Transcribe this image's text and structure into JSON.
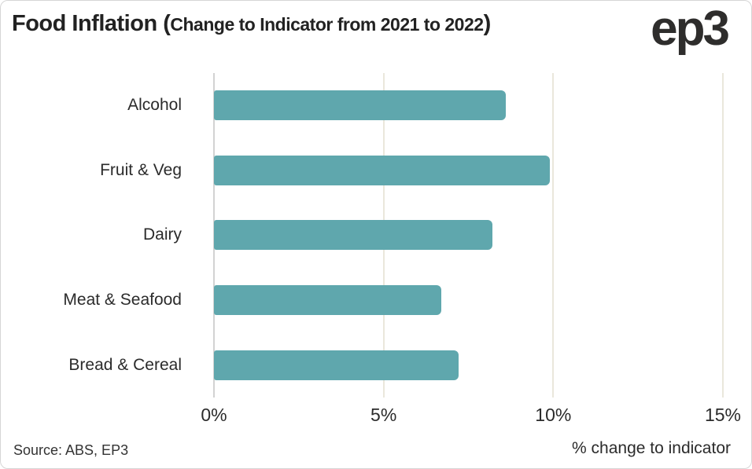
{
  "title": {
    "main": "Food Inflation (",
    "subtitle": "Change to Indicator from 2021 to 2022",
    "close_paren": ")"
  },
  "logo_text": "ep3",
  "chart_data": {
    "type": "bar",
    "orientation": "horizontal",
    "title": "Food Inflation (Change to Indicator from 2021 to 2022)",
    "categories": [
      "Alcohol",
      "Fruit & Veg",
      "Dairy",
      "Meat & Seafood",
      "Bread & Cereal"
    ],
    "values": [
      8.6,
      9.9,
      8.2,
      6.7,
      7.2
    ],
    "xlim": [
      0,
      15
    ],
    "x_tick_values": [
      0,
      5,
      10,
      15
    ],
    "x_ticks": [
      "0%",
      "5%",
      "10%",
      "15%"
    ],
    "xlabel": "% change to indicator",
    "grid": true,
    "legend": false,
    "bar_color": "#5fa7ad",
    "axis_line_color": "#d2d2d2",
    "grid_color": "#eae7dc"
  },
  "footer": {
    "source": "Source: ABS, EP3",
    "xlabel": "% change to indicator"
  }
}
